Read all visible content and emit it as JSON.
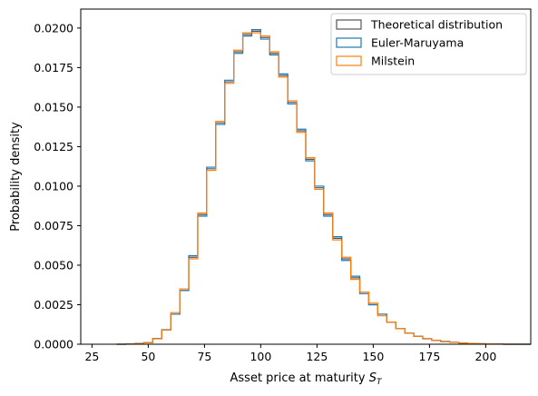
{
  "chart_data": {
    "type": "histogram",
    "xlabel": "Asset price at maturity",
    "xlabel_symbol": "S",
    "xlabel_subscript": "T",
    "ylabel": "Probability density",
    "xlim": [
      20,
      220
    ],
    "ylim": [
      0,
      0.0212
    ],
    "xticks": [
      25,
      50,
      75,
      100,
      125,
      150,
      175,
      200
    ],
    "xtick_labels": [
      "25",
      "50",
      "75",
      "100",
      "125",
      "150",
      "175",
      "200"
    ],
    "yticks": [
      0,
      0.0025,
      0.005,
      0.0075,
      0.01,
      0.0125,
      0.015,
      0.0175,
      0.02
    ],
    "ytick_labels": [
      "0.0000",
      "0.0025",
      "0.0050",
      "0.0075",
      "0.0100",
      "0.0125",
      "0.0150",
      "0.0175",
      "0.0200"
    ],
    "grid": false,
    "legend_position": "top-right",
    "bin_edges": [
      36,
      40,
      44,
      48,
      52,
      56,
      60,
      64,
      68,
      72,
      76,
      80,
      84,
      88,
      92,
      96,
      100,
      104,
      108,
      112,
      116,
      120,
      124,
      128,
      132,
      136,
      140,
      144,
      148,
      152,
      156,
      160,
      164,
      168,
      172,
      176,
      180,
      184,
      188,
      192,
      196,
      200,
      204,
      208,
      212,
      216,
      220
    ],
    "series": [
      {
        "name": "Theoretical distribution",
        "color": "#555555",
        "values": [
          0.0,
          1e-05,
          4e-05,
          0.0001,
          0.00035,
          0.0009,
          0.0019,
          0.0034,
          0.0055,
          0.0082,
          0.0111,
          0.014,
          0.0166,
          0.0185,
          0.0196,
          0.0198,
          0.0194,
          0.0184,
          0.017,
          0.0153,
          0.0135,
          0.0117,
          0.0099,
          0.0082,
          0.0067,
          0.0054,
          0.0042,
          0.0033,
          0.0025,
          0.0019,
          0.0014,
          0.001,
          0.0007,
          0.0005,
          0.00035,
          0.00025,
          0.00017,
          0.00012,
          8e-05,
          5e-05,
          3e-05,
          2e-05,
          1e-05,
          0.0,
          0.0,
          0.0
        ]
      },
      {
        "name": "Euler-Maruyama",
        "color": "#1f77b4",
        "values": [
          0.0,
          1e-05,
          5e-05,
          0.00011,
          0.00036,
          0.00092,
          0.0019,
          0.0034,
          0.0056,
          0.0081,
          0.0112,
          0.0139,
          0.0167,
          0.0184,
          0.0195,
          0.0199,
          0.0193,
          0.0183,
          0.0171,
          0.0152,
          0.0136,
          0.0116,
          0.01,
          0.0081,
          0.0068,
          0.0053,
          0.0043,
          0.0032,
          0.0025,
          0.0019,
          0.0014,
          0.001,
          0.0007,
          0.0005,
          0.00034,
          0.00024,
          0.00018,
          0.00012,
          8e-05,
          5e-05,
          3e-05,
          2e-05,
          1e-05,
          0.0,
          0.0,
          0.0
        ]
      },
      {
        "name": "Milstein",
        "color": "#ff7f0e",
        "values": [
          0.0,
          1e-05,
          4e-05,
          0.0001,
          0.00034,
          0.0009,
          0.002,
          0.0035,
          0.0054,
          0.0083,
          0.011,
          0.0141,
          0.0165,
          0.0186,
          0.0197,
          0.0197,
          0.0195,
          0.0185,
          0.0169,
          0.0154,
          0.0134,
          0.0118,
          0.0098,
          0.0083,
          0.0066,
          0.0055,
          0.0041,
          0.0033,
          0.0026,
          0.0018,
          0.0014,
          0.001,
          0.0007,
          0.0005,
          0.00036,
          0.00025,
          0.00016,
          0.00012,
          8e-05,
          5e-05,
          3e-05,
          2e-05,
          1e-05,
          0.0,
          0.0,
          0.0
        ]
      }
    ]
  }
}
